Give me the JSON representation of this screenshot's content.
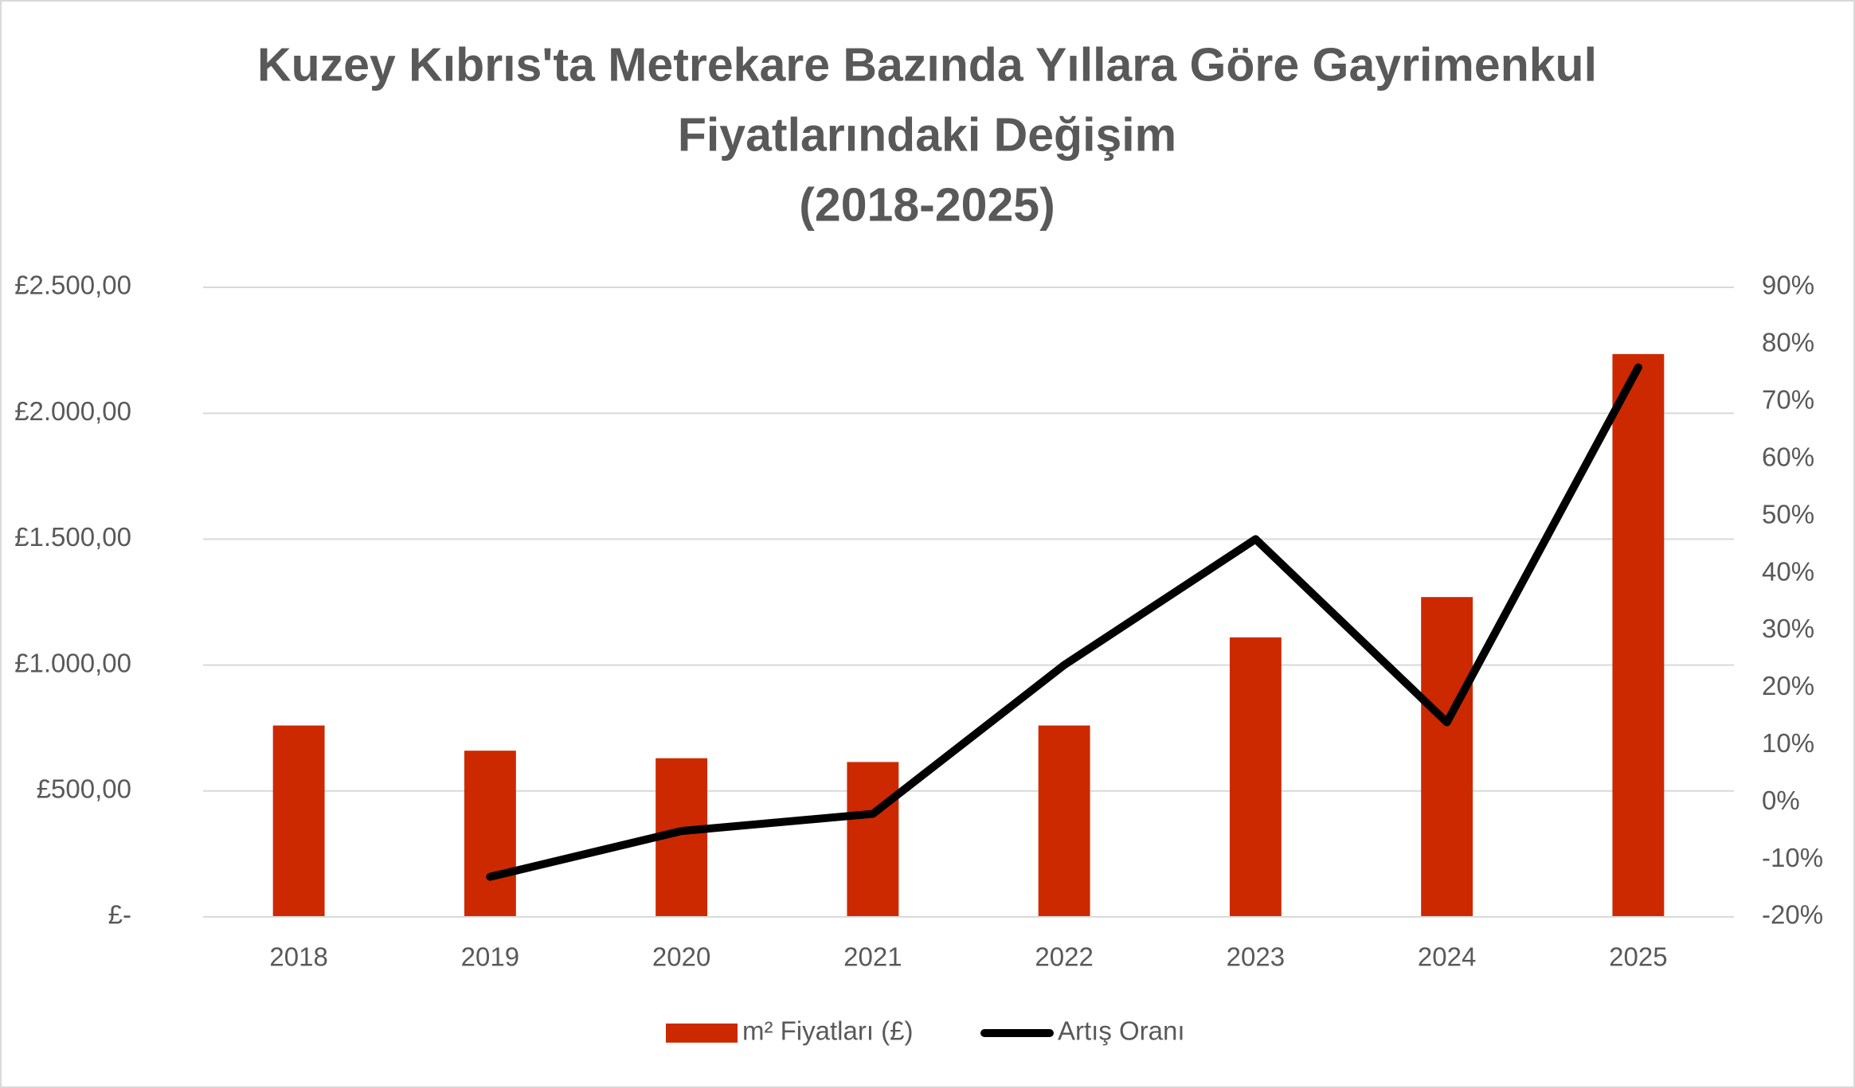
{
  "chart_data": {
    "type": "bar_line",
    "title": [
      "Kuzey Kıbrıs'ta Metrekare Bazında Yıllara Göre Gayrimenkul",
      "Fiyatlarındaki Değişim",
      "(2018-2025)"
    ],
    "categories": [
      "2018",
      "2019",
      "2020",
      "2021",
      "2022",
      "2023",
      "2024",
      "2025"
    ],
    "series": [
      {
        "name": "m² Fiyatları (£)",
        "type": "bar",
        "color": "#cc2900",
        "values": [
          760,
          660,
          630,
          615,
          760,
          1110,
          1270,
          2235
        ]
      },
      {
        "name": "Artış Oranı",
        "type": "line",
        "axis": "y2",
        "color": "#000000",
        "values": [
          null,
          -13,
          -5,
          -2,
          24,
          46,
          14,
          76
        ]
      }
    ],
    "ylim": [
      0,
      2500
    ],
    "yticks": [
      {
        "value": 0,
        "label": "£-"
      },
      {
        "value": 500,
        "label": "£500,00"
      },
      {
        "value": 1000,
        "label": "£1.000,00"
      },
      {
        "value": 1500,
        "label": "£1.500,00"
      },
      {
        "value": 2000,
        "label": "£2.000,00"
      },
      {
        "value": 2500,
        "label": "£2.500,00"
      }
    ],
    "y2lim": [
      -20,
      90
    ],
    "y2ticks": [
      {
        "value": -20,
        "label": "-20%"
      },
      {
        "value": -10,
        "label": "-10%"
      },
      {
        "value": 0,
        "label": "0%"
      },
      {
        "value": 10,
        "label": "10%"
      },
      {
        "value": 20,
        "label": "20%"
      },
      {
        "value": 30,
        "label": "30%"
      },
      {
        "value": 40,
        "label": "40%"
      },
      {
        "value": 50,
        "label": "50%"
      },
      {
        "value": 60,
        "label": "60%"
      },
      {
        "value": 70,
        "label": "70%"
      },
      {
        "value": 80,
        "label": "80%"
      },
      {
        "value": 90,
        "label": "90%"
      }
    ],
    "grid": true,
    "legend": "bottom"
  }
}
